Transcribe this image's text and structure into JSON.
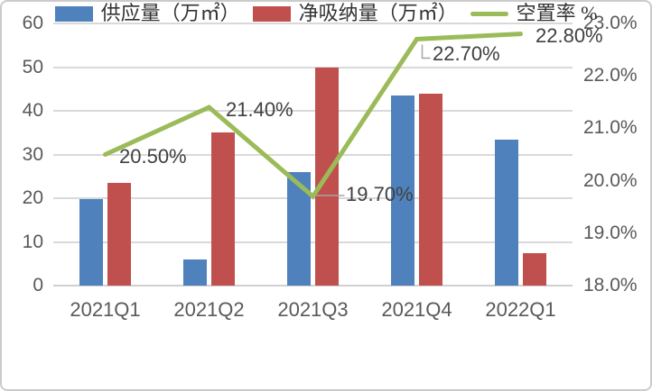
{
  "chart_data": {
    "type": "bar",
    "subtype": "clustered-bar-with-line-combo",
    "categories": [
      "2021Q1",
      "2021Q2",
      "2021Q3",
      "2021Q4",
      "2022Q1"
    ],
    "series": [
      {
        "name": "供应量（万㎡）",
        "chart": "bar",
        "axis": "left",
        "color": "#4f81bd",
        "values": [
          19.8,
          6,
          26,
          43.5,
          33.5
        ]
      },
      {
        "name": "净吸纳量（万㎡）",
        "chart": "bar",
        "axis": "left",
        "color": "#c0504d",
        "values": [
          23.5,
          35,
          50,
          44,
          7.5
        ]
      },
      {
        "name": "空置率 %",
        "chart": "line",
        "axis": "right",
        "color": "#9bbb59",
        "values": [
          20.5,
          21.4,
          19.7,
          22.7,
          22.8
        ],
        "point_labels": [
          "20.50%",
          "21.40%",
          "19.70%",
          "22.70%",
          "22.80%"
        ]
      }
    ],
    "left_axis": {
      "min": 0,
      "max": 60,
      "step": 10,
      "tick_labels": [
        "60",
        "50",
        "40",
        "30",
        "20",
        "10",
        "0"
      ]
    },
    "right_axis": {
      "min": 18,
      "max": 23,
      "step": 1,
      "tick_labels": [
        "23.0%",
        "22.0%",
        "21.0%",
        "20.0%",
        "19.0%",
        "18.0%"
      ]
    },
    "title": "",
    "grid": true,
    "legend_position": "bottom",
    "colors": {
      "gridline": "#d9d9d9",
      "axis_text": "#595959",
      "data_label_text": "#404040",
      "leader_line": "#a6a6a6"
    }
  }
}
